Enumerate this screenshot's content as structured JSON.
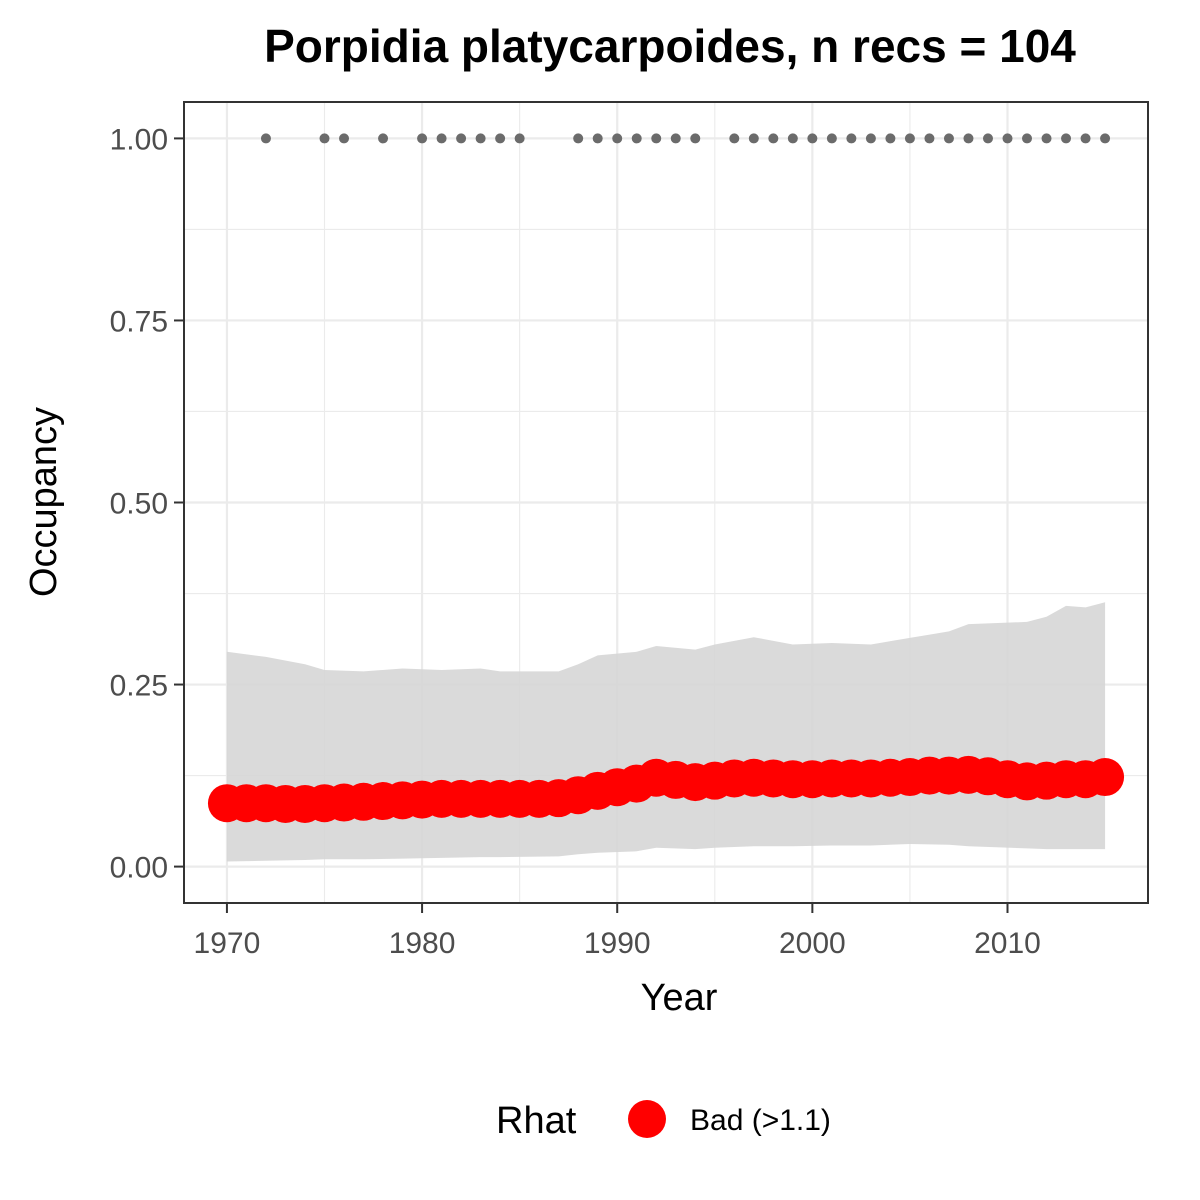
{
  "chart_data": {
    "type": "line",
    "title": "Porpidia platycarpoides, n recs = 104",
    "xlabel": "Year",
    "ylabel": "Occupancy",
    "xlim": [
      1967.8,
      2017.2
    ],
    "ylim": [
      -0.05,
      1.05
    ],
    "x_ticks": [
      1970,
      1980,
      1990,
      2000,
      2010
    ],
    "x_tick_labels": [
      "1970",
      "1980",
      "1990",
      "2000",
      "2010"
    ],
    "y_ticks": [
      0,
      0.25,
      0.5,
      0.75,
      1
    ],
    "y_tick_labels": [
      "0.00",
      "0.25",
      "0.50",
      "0.75",
      "1.00"
    ],
    "grid": true,
    "legend": {
      "title": "Rhat",
      "position": "bottom",
      "entries": [
        {
          "label": "Bad (>1.1)",
          "color": "#ff0000"
        }
      ]
    },
    "ribbon": {
      "x": [
        1970,
        1972,
        1974,
        1975,
        1977,
        1979,
        1981,
        1983,
        1984,
        1987,
        1988,
        1989,
        1991,
        1992,
        1994,
        1995,
        1997,
        1999,
        2001,
        2003,
        2005,
        2007,
        2008,
        2011,
        2012,
        2013,
        2014,
        2015
      ],
      "upper": [
        0.295,
        0.288,
        0.278,
        0.27,
        0.268,
        0.272,
        0.27,
        0.272,
        0.268,
        0.268,
        0.278,
        0.29,
        0.295,
        0.303,
        0.298,
        0.305,
        0.315,
        0.305,
        0.307,
        0.305,
        0.314,
        0.323,
        0.333,
        0.336,
        0.343,
        0.358,
        0.356,
        0.363
      ],
      "lower": [
        0.007,
        0.008,
        0.009,
        0.01,
        0.01,
        0.011,
        0.012,
        0.013,
        0.013,
        0.014,
        0.017,
        0.019,
        0.021,
        0.026,
        0.024,
        0.026,
        0.028,
        0.028,
        0.029,
        0.029,
        0.031,
        0.03,
        0.028,
        0.025,
        0.024,
        0.024,
        0.024,
        0.024
      ],
      "color": "#d6d6d6"
    },
    "series": [
      {
        "name": "Bad (>1.1)",
        "color": "#ff0000",
        "x": [
          1970,
          1971,
          1972,
          1973,
          1974,
          1975,
          1976,
          1977,
          1978,
          1979,
          1980,
          1981,
          1982,
          1983,
          1984,
          1985,
          1986,
          1987,
          1988,
          1989,
          1990,
          1991,
          1992,
          1993,
          1994,
          1995,
          1996,
          1997,
          1998,
          1999,
          2000,
          2001,
          2002,
          2003,
          2004,
          2005,
          2006,
          2007,
          2008,
          2009,
          2010,
          2011,
          2012,
          2013,
          2014,
          2015
        ],
        "values": [
          0.087,
          0.087,
          0.087,
          0.086,
          0.086,
          0.087,
          0.088,
          0.089,
          0.09,
          0.091,
          0.092,
          0.093,
          0.093,
          0.093,
          0.093,
          0.093,
          0.093,
          0.094,
          0.098,
          0.104,
          0.109,
          0.114,
          0.122,
          0.119,
          0.116,
          0.118,
          0.121,
          0.122,
          0.121,
          0.12,
          0.12,
          0.121,
          0.121,
          0.121,
          0.122,
          0.123,
          0.125,
          0.125,
          0.126,
          0.124,
          0.12,
          0.117,
          0.118,
          0.12,
          0.12,
          0.123
        ]
      }
    ],
    "detections": {
      "y": 1.0,
      "color": "#6b6b6b",
      "x": [
        1972,
        1975,
        1976,
        1978,
        1980,
        1981,
        1982,
        1983,
        1984,
        1985,
        1988,
        1989,
        1990,
        1991,
        1992,
        1993,
        1994,
        1996,
        1997,
        1998,
        1999,
        2000,
        2001,
        2002,
        2003,
        2004,
        2005,
        2006,
        2007,
        2008,
        2009,
        2010,
        2011,
        2012,
        2013,
        2014,
        2015
      ]
    }
  }
}
